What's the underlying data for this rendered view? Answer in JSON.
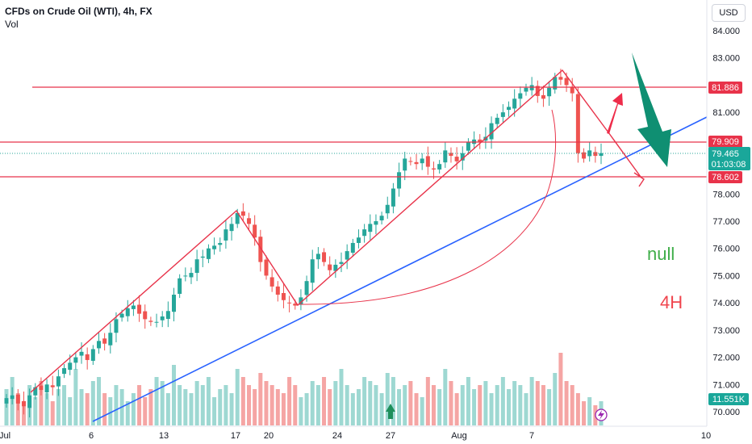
{
  "header": {
    "title": "CFDs on Crude Oil (WTI), 4h, FX",
    "sub": "Vol"
  },
  "currency_button": "USD",
  "annotations": {
    "text1": "null",
    "text2": "4H"
  },
  "colors": {
    "up": "#26a69a",
    "down": "#ef5350",
    "vol_up": "#9ed8d2",
    "vol_down": "#f5a5a4",
    "hline": "#e8334a",
    "trend": "#2962ff",
    "arrow_big": "#0f8f72"
  },
  "chart_data": {
    "type": "candlestick",
    "title": "CFDs on Crude Oil (WTI), 4h, FX",
    "y_ticks": [
      "84.000",
      "83.000",
      "82.000",
      "81.000",
      "80.000",
      "79.000",
      "78.000",
      "77.000",
      "76.000",
      "75.000",
      "74.000",
      "73.000",
      "72.000",
      "71.000",
      "70.000"
    ],
    "x_ticks": [
      "Jul",
      "6",
      "13",
      "17",
      "20",
      "24",
      "27",
      "Aug",
      "7",
      "10"
    ],
    "price_labels": {
      "resistance": "81.886",
      "level_mid": "79.909",
      "current": "79.465",
      "countdown": "01:03:08",
      "support": "78.602",
      "volume": "11.551K"
    },
    "horizontal_levels": [
      81.886,
      79.909,
      78.602
    ],
    "candles_close_series": [
      70.5,
      70.6,
      70.3,
      70.2,
      70.6,
      70.9,
      70.8,
      71.0,
      70.9,
      71.3,
      71.6,
      71.8,
      72.0,
      72.2,
      71.9,
      72.3,
      72.6,
      72.5,
      72.9,
      73.4,
      73.6,
      73.8,
      73.9,
      73.6,
      73.4,
      73.3,
      73.3,
      73.5,
      73.7,
      74.3,
      74.9,
      75.0,
      75.1,
      75.6,
      75.7,
      76.0,
      76.1,
      76.2,
      76.7,
      76.9,
      77.3,
      77.2,
      76.9,
      76.4,
      75.5,
      75.0,
      74.6,
      74.3,
      74.1,
      74.0,
      73.9,
      74.2,
      74.8,
      75.6,
      75.8,
      75.5,
      75.2,
      75.4,
      75.5,
      75.9,
      76.2,
      76.4,
      76.7,
      76.9,
      77.0,
      77.2,
      77.6,
      78.2,
      78.8,
      79.3,
      79.2,
      79.1,
      79.3,
      79.0,
      78.9,
      79.1,
      79.6,
      79.4,
      79.2,
      79.5,
      79.9,
      80.0,
      79.9,
      80.1,
      80.6,
      80.8,
      81.0,
      81.2,
      81.5,
      81.7,
      81.9,
      82.0,
      81.6,
      81.5,
      81.9,
      82.3,
      82.2,
      82.0,
      81.7,
      79.5,
      79.3,
      79.6,
      79.4,
      79.5
    ],
    "volume_series": [
      0.45,
      0.6,
      0.4,
      0.3,
      0.5,
      0.35,
      0.55,
      0.4,
      0.3,
      0.45,
      0.5,
      0.35,
      0.7,
      0.45,
      0.4,
      0.55,
      0.6,
      0.4,
      0.35,
      0.5,
      0.45,
      0.3,
      0.4,
      0.5,
      0.35,
      0.45,
      0.6,
      0.55,
      0.4,
      0.75,
      0.5,
      0.45,
      0.4,
      0.55,
      0.5,
      0.6,
      0.35,
      0.45,
      0.5,
      0.4,
      0.7,
      0.6,
      0.5,
      0.45,
      0.65,
      0.55,
      0.5,
      0.45,
      0.4,
      0.6,
      0.5,
      0.35,
      0.4,
      0.55,
      0.5,
      0.6,
      0.45,
      0.55,
      0.7,
      0.5,
      0.4,
      0.45,
      0.6,
      0.55,
      0.5,
      0.4,
      0.65,
      0.6,
      0.45,
      0.5,
      0.55,
      0.4,
      0.35,
      0.6,
      0.5,
      0.45,
      0.7,
      0.55,
      0.4,
      0.5,
      0.6,
      0.45,
      0.5,
      0.55,
      0.4,
      0.5,
      0.6,
      0.45,
      0.55,
      0.5,
      0.4,
      0.6,
      0.55,
      0.5,
      0.45,
      0.65,
      0.9,
      0.55,
      0.5,
      0.4,
      0.3,
      0.35,
      0.25,
      0.3
    ]
  }
}
